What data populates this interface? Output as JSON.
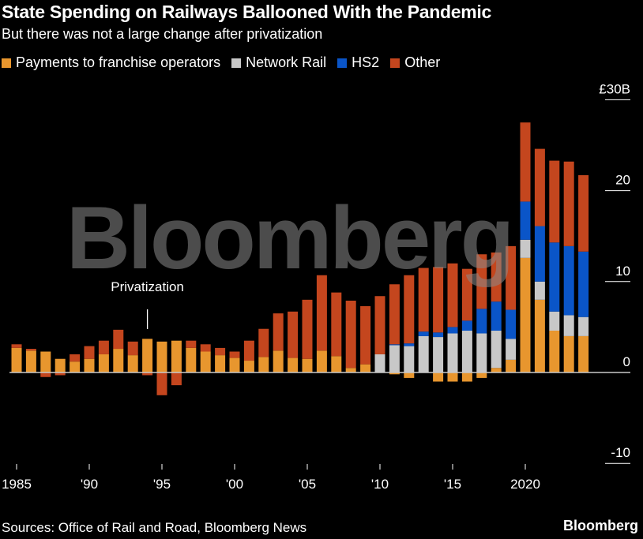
{
  "chart_data": {
    "type": "bar",
    "stacked": true,
    "title": "State Spending on Railways Ballooned With the Pandemic",
    "subtitle": "But there was not a large change after privatization",
    "xlabel": "",
    "ylabel": "",
    "ylim": [
      -10,
      30
    ],
    "y_ticks": [
      {
        "value": 30,
        "label": "£30B"
      },
      {
        "value": 20,
        "label": "20"
      },
      {
        "value": 10,
        "label": "10"
      },
      {
        "value": 0,
        "label": "0"
      },
      {
        "value": -10,
        "label": "-10"
      }
    ],
    "x_ticks": [
      {
        "year": 1985,
        "label": "1985"
      },
      {
        "year": 1990,
        "label": "'90"
      },
      {
        "year": 1995,
        "label": "'95"
      },
      {
        "year": 2000,
        "label": "'00"
      },
      {
        "year": 2005,
        "label": "'05"
      },
      {
        "year": 2010,
        "label": "'10"
      },
      {
        "year": 2015,
        "label": "'15"
      },
      {
        "year": 2020,
        "label": "2020"
      }
    ],
    "categories": [
      1985,
      1986,
      1987,
      1988,
      1989,
      1990,
      1991,
      1992,
      1993,
      1994,
      1995,
      1996,
      1997,
      1998,
      1999,
      2000,
      2001,
      2002,
      2003,
      2004,
      2005,
      2006,
      2007,
      2008,
      2009,
      2010,
      2011,
      2012,
      2013,
      2014,
      2015,
      2016,
      2017,
      2018,
      2019,
      2020,
      2021,
      2022,
      2023,
      2024
    ],
    "series": [
      {
        "name": "Payments to franchise operators",
        "color": "#e8962e",
        "values": [
          2.7,
          2.4,
          2.3,
          1.5,
          1.2,
          1.5,
          2.0,
          2.6,
          1.9,
          3.7,
          3.4,
          3.5,
          2.7,
          2.3,
          1.9,
          1.6,
          1.3,
          1.7,
          2.4,
          1.6,
          1.5,
          2.4,
          1.8,
          0.5,
          0.9,
          0,
          -0.2,
          -0.6,
          0,
          -1.0,
          -1.0,
          -1.0,
          -0.6,
          0.5,
          1.4,
          12.6,
          8.0,
          4.6,
          4.0,
          4.0
        ]
      },
      {
        "name": "Network Rail",
        "color": "#c8c8c8",
        "values": [
          0,
          0,
          0,
          0,
          0,
          0,
          0,
          0,
          0,
          0,
          0,
          0,
          0,
          0,
          0,
          0,
          0,
          0,
          0,
          0,
          0,
          0,
          0,
          0,
          0,
          2.0,
          3.0,
          2.9,
          4.0,
          3.9,
          4.3,
          4.6,
          4.3,
          4.1,
          2.3,
          2.0,
          2.0,
          2.1,
          2.3,
          2.1
        ]
      },
      {
        "name": "HS2",
        "color": "#0a55c8",
        "values": [
          0,
          0,
          0,
          0,
          0,
          0,
          0,
          0,
          0,
          0,
          0,
          0,
          0,
          0,
          0,
          0,
          0,
          0,
          0,
          0,
          0,
          0,
          0,
          0,
          0,
          0,
          0.1,
          0.3,
          0.5,
          0.5,
          0.7,
          1.1,
          2.7,
          3.2,
          3.2,
          4.2,
          6.1,
          7.6,
          7.6,
          7.2
        ]
      },
      {
        "name": "Other",
        "color": "#c4461e",
        "values": [
          0.4,
          0.2,
          -0.5,
          -0.3,
          0.8,
          1.4,
          1.5,
          2.1,
          1.5,
          -0.3,
          -2.5,
          -1.4,
          0.8,
          0.8,
          0.8,
          0.7,
          2.2,
          3.1,
          4.1,
          5.1,
          6.5,
          8.3,
          7.0,
          7.4,
          6.4,
          6.4,
          6.6,
          7.5,
          7.0,
          7.2,
          7.0,
          5.7,
          6.0,
          5.4,
          7.0,
          8.7,
          8.5,
          9.0,
          9.3,
          8.4
        ]
      }
    ],
    "annotations": [
      {
        "year": 1994,
        "text": "Privatization"
      }
    ],
    "legend_placement": "top-left",
    "grid": false
  },
  "footer": {
    "source": "Sources: Office of Rail and Road, Bloomberg News",
    "brand": "Bloomberg"
  },
  "watermark": "Bloomberg"
}
